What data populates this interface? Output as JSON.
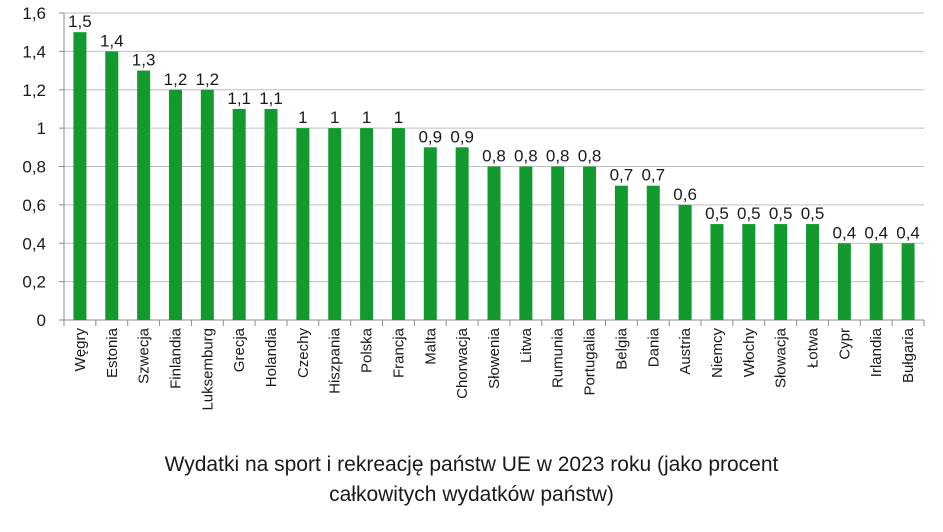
{
  "chart_data": {
    "type": "bar",
    "title": "",
    "xlabel": "",
    "ylabel": "",
    "categories": [
      "Węgry",
      "Estonia",
      "Szwecja",
      "Finlandia",
      "Luksemburg",
      "Grecja",
      "Holandia",
      "Czechy",
      "Hiszpania",
      "Polska",
      "Francja",
      "Malta",
      "Chorwacja",
      "Słowenia",
      "Litwa",
      "Rumunia",
      "Portugalia",
      "Belgia",
      "Dania",
      "Austria",
      "Niemcy",
      "Włochy",
      "Słowacja",
      "Łotwa",
      "Cypr",
      "Irlandia",
      "Bułgaria"
    ],
    "values": [
      1.5,
      1.4,
      1.3,
      1.2,
      1.2,
      1.1,
      1.1,
      1,
      1,
      1,
      1,
      0.9,
      0.9,
      0.8,
      0.8,
      0.8,
      0.8,
      0.7,
      0.7,
      0.6,
      0.5,
      0.5,
      0.5,
      0.5,
      0.4,
      0.4,
      0.4
    ],
    "data_labels": [
      "1,5",
      "1,4",
      "1,3",
      "1,2",
      "1,2",
      "1,1",
      "1,1",
      "1",
      "1",
      "1",
      "1",
      "0,9",
      "0,9",
      "0,8",
      "0,8",
      "0,8",
      "0,8",
      "0,7",
      "0,7",
      "0,6",
      "0,5",
      "0,5",
      "0,5",
      "0,5",
      "0,4",
      "0,4",
      "0,4"
    ],
    "yticks": [
      "0",
      "0,2",
      "0,4",
      "0,6",
      "0,8",
      "1",
      "1,2",
      "1,4",
      "1,6"
    ],
    "ylim": [
      0,
      1.6
    ],
    "grid": true,
    "bar_color": "#139A2F"
  },
  "caption": {
    "line1": "Wydatki na sport i rekreację państw UE w 2023 roku (jako procent",
    "line2": "całkowitych wydatków państw)"
  }
}
